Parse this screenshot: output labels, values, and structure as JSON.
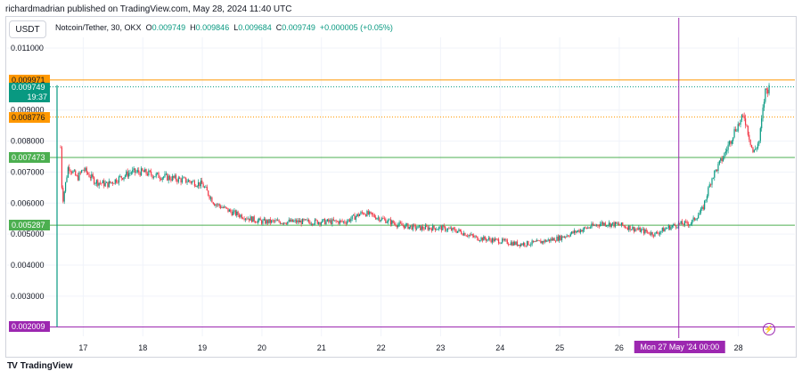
{
  "header": {
    "published": "richardmadrian published on TradingView.com, May 28, 2024 11:40 UTC"
  },
  "toolbar": {
    "currency_button": "USDT"
  },
  "legend": {
    "symbol": "Notcoin/Tether, 30, OKX",
    "o_label": "O",
    "o": "0.009749",
    "h_label": "H",
    "h": "0.009846",
    "l_label": "L",
    "l": "0.009684",
    "c_label": "C",
    "c": "0.009749",
    "change": "+0.000005 (+0.05%)"
  },
  "price_labels": [
    {
      "text": "0.009971",
      "value": 0.009971,
      "color": "#ff9800",
      "text_color": "#131722"
    },
    {
      "text": "0.009749",
      "sub": "19:37",
      "value": 0.009749,
      "color": "#089981",
      "text_color": "#ffffff"
    },
    {
      "text": "0.008776",
      "value": 0.008776,
      "color": "#ff9800",
      "text_color": "#131722"
    },
    {
      "text": "0.007473",
      "value": 0.007473,
      "color": "#4caf50",
      "text_color": "#ffffff"
    },
    {
      "text": "0.005287",
      "value": 0.005287,
      "color": "#4caf50",
      "text_color": "#ffffff"
    },
    {
      "text": "0.002009",
      "value": 0.002009,
      "color": "#9c27b0",
      "text_color": "#ffffff"
    }
  ],
  "crosshair_label": "Mon 27 May '24   00:00",
  "footer": {
    "brand": "TradingView",
    "logo_icon": "tradingview-logo-icon"
  },
  "colors": {
    "up": "#089981",
    "down": "#f23645",
    "grid": "#f0f3fa",
    "crosshair": "#9c27b0"
  },
  "chart_data": {
    "type": "candlestick",
    "title": "Notcoin/Tether, 30, OKX",
    "ylim": [
      0.00165,
      0.0114
    ],
    "y_ticks": [
      "0.011000",
      "0.009000",
      "0.008000",
      "0.007000",
      "0.006000",
      "0.005000",
      "0.004000",
      "0.003000"
    ],
    "y_tick_values": [
      0.011,
      0.009,
      0.008,
      0.007,
      0.006,
      0.005,
      0.004,
      0.003
    ],
    "x_ticks": [
      "17",
      "18",
      "19",
      "20",
      "21",
      "22",
      "23",
      "24",
      "25",
      "26",
      "28"
    ],
    "x_tick_days": [
      17,
      18,
      19,
      20,
      21,
      22,
      23,
      24,
      25,
      26,
      28
    ],
    "x_start_day": 16.56,
    "x_end_day": 28.56,
    "crosshair_day": 27.0,
    "horizontal_lines": [
      {
        "value": 0.009971,
        "color": "#ff9800",
        "style": "solid"
      },
      {
        "value": 0.009749,
        "color": "#089981",
        "style": "dotted"
      },
      {
        "value": 0.008776,
        "color": "#ff9800",
        "style": "dotted"
      },
      {
        "value": 0.007473,
        "color": "#4caf50",
        "style": "solid"
      },
      {
        "value": 0.005287,
        "color": "#4caf50",
        "style": "solid"
      },
      {
        "value": 0.002009,
        "color": "#9c27b0",
        "style": "solid"
      }
    ],
    "price_path": [
      [
        16.56,
        0.00201
      ],
      [
        16.6,
        0.009
      ],
      [
        16.65,
        0.006
      ],
      [
        16.75,
        0.0072
      ],
      [
        16.9,
        0.0068
      ],
      [
        17.0,
        0.0071
      ],
      [
        17.2,
        0.0067
      ],
      [
        17.4,
        0.0066
      ],
      [
        17.6,
        0.0068
      ],
      [
        17.8,
        0.007
      ],
      [
        18.0,
        0.007
      ],
      [
        18.2,
        0.0069
      ],
      [
        18.5,
        0.0068
      ],
      [
        18.8,
        0.0067
      ],
      [
        19.0,
        0.0066
      ],
      [
        19.2,
        0.006
      ],
      [
        19.5,
        0.0057
      ],
      [
        19.8,
        0.0055
      ],
      [
        20.0,
        0.0054
      ],
      [
        20.3,
        0.0054
      ],
      [
        20.6,
        0.0054
      ],
      [
        21.0,
        0.0054
      ],
      [
        21.4,
        0.0054
      ],
      [
        21.7,
        0.0057
      ],
      [
        22.0,
        0.0055
      ],
      [
        22.3,
        0.0053
      ],
      [
        22.6,
        0.0052
      ],
      [
        23.0,
        0.0052
      ],
      [
        23.3,
        0.0051
      ],
      [
        23.6,
        0.00488
      ],
      [
        24.0,
        0.00478
      ],
      [
        24.3,
        0.00468
      ],
      [
        24.6,
        0.00472
      ],
      [
        25.0,
        0.00488
      ],
      [
        25.3,
        0.0051
      ],
      [
        25.7,
        0.00535
      ],
      [
        26.0,
        0.0053
      ],
      [
        26.3,
        0.00515
      ],
      [
        26.6,
        0.005
      ],
      [
        26.8,
        0.0052
      ],
      [
        27.0,
        0.00532
      ],
      [
        27.2,
        0.00535
      ],
      [
        27.4,
        0.0058
      ],
      [
        27.55,
        0.0068
      ],
      [
        27.75,
        0.0075
      ],
      [
        27.95,
        0.0084
      ],
      [
        28.1,
        0.0088
      ],
      [
        28.25,
        0.0076
      ],
      [
        28.35,
        0.008
      ],
      [
        28.45,
        0.0096
      ],
      [
        28.53,
        0.009749
      ]
    ]
  }
}
